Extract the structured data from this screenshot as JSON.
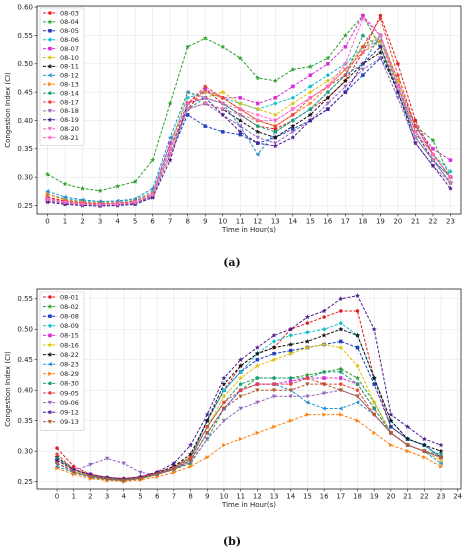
{
  "chart_data": [
    {
      "type": "line",
      "caption": "(a)",
      "xlabel": "Time in Hour(s)",
      "ylabel": "Congestion Index (CI)",
      "xlim": [
        -0.6,
        23.6
      ],
      "ylim": [
        0.235,
        0.602
      ],
      "xticks": [
        0,
        1,
        2,
        3,
        4,
        5,
        6,
        7,
        8,
        9,
        10,
        11,
        12,
        13,
        14,
        15,
        16,
        17,
        18,
        19,
        20,
        21,
        22,
        23
      ],
      "yticks": [
        0.25,
        0.3,
        0.35,
        0.4,
        0.45,
        0.5,
        0.55,
        0.6
      ],
      "legend": "upper-left",
      "grid": true,
      "x": [
        0,
        1,
        2,
        3,
        4,
        5,
        6,
        7,
        8,
        9,
        10,
        11,
        12,
        13,
        14,
        15,
        16,
        17,
        18,
        19,
        20,
        21,
        22,
        23
      ],
      "series": [
        {
          "name": "08-03",
          "color": "#e41a1c",
          "marker": "circle",
          "values": [
            0.265,
            0.258,
            0.255,
            0.253,
            0.254,
            0.256,
            0.268,
            0.35,
            0.42,
            0.455,
            0.43,
            0.41,
            0.39,
            0.385,
            0.4,
            0.42,
            0.44,
            0.47,
            0.52,
            0.585,
            0.5,
            0.4,
            0.34,
            0.3
          ]
        },
        {
          "name": "08-04",
          "color": "#2ca02c",
          "marker": "star",
          "values": [
            0.305,
            0.288,
            0.28,
            0.276,
            0.284,
            0.292,
            0.33,
            0.43,
            0.53,
            0.545,
            0.53,
            0.51,
            0.475,
            0.47,
            0.49,
            0.495,
            0.51,
            0.55,
            0.585,
            0.53,
            0.46,
            0.39,
            0.365,
            0.3
          ]
        },
        {
          "name": "08-05",
          "color": "#1f3fbf",
          "marker": "square",
          "values": [
            0.26,
            0.256,
            0.254,
            0.252,
            0.253,
            0.255,
            0.265,
            0.34,
            0.41,
            0.39,
            0.38,
            0.375,
            0.36,
            0.37,
            0.385,
            0.4,
            0.42,
            0.45,
            0.48,
            0.51,
            0.46,
            0.38,
            0.33,
            0.3
          ]
        },
        {
          "name": "08-06",
          "color": "#17becf",
          "marker": "diamond",
          "values": [
            0.27,
            0.262,
            0.258,
            0.256,
            0.257,
            0.26,
            0.275,
            0.36,
            0.44,
            0.45,
            0.44,
            0.43,
            0.42,
            0.43,
            0.44,
            0.46,
            0.48,
            0.5,
            0.53,
            0.54,
            0.47,
            0.39,
            0.34,
            0.31
          ]
        },
        {
          "name": "08-07",
          "color": "#d62dd6",
          "marker": "square",
          "values": [
            0.262,
            0.256,
            0.253,
            0.251,
            0.252,
            0.255,
            0.27,
            0.36,
            0.43,
            0.455,
            0.44,
            0.44,
            0.43,
            0.44,
            0.46,
            0.48,
            0.5,
            0.53,
            0.585,
            0.55,
            0.47,
            0.39,
            0.35,
            0.33
          ]
        },
        {
          "name": "08-10",
          "color": "#e0c000",
          "marker": "star",
          "values": [
            0.258,
            0.254,
            0.252,
            0.251,
            0.252,
            0.254,
            0.268,
            0.35,
            0.45,
            0.44,
            0.45,
            0.43,
            0.42,
            0.41,
            0.43,
            0.45,
            0.47,
            0.49,
            0.53,
            0.55,
            0.47,
            0.38,
            0.34,
            0.3
          ]
        },
        {
          "name": "08-11",
          "color": "#111111",
          "marker": "star",
          "values": [
            0.26,
            0.255,
            0.252,
            0.25,
            0.251,
            0.254,
            0.268,
            0.34,
            0.42,
            0.43,
            0.42,
            0.4,
            0.38,
            0.37,
            0.39,
            0.41,
            0.44,
            0.47,
            0.5,
            0.52,
            0.45,
            0.37,
            0.33,
            0.29
          ]
        },
        {
          "name": "08-12",
          "color": "#2a8fd0",
          "marker": "triangle-left",
          "values": [
            0.275,
            0.265,
            0.26,
            0.257,
            0.258,
            0.262,
            0.28,
            0.37,
            0.45,
            0.44,
            0.43,
            0.39,
            0.34,
            0.38,
            0.4,
            0.42,
            0.45,
            0.48,
            0.5,
            0.55,
            0.46,
            0.37,
            0.33,
            0.3
          ]
        },
        {
          "name": "08-13",
          "color": "#ff7f0e",
          "marker": "triangle-right",
          "values": [
            0.27,
            0.26,
            0.256,
            0.254,
            0.255,
            0.258,
            0.272,
            0.35,
            0.43,
            0.45,
            0.44,
            0.42,
            0.4,
            0.39,
            0.41,
            0.43,
            0.46,
            0.49,
            0.52,
            0.54,
            0.46,
            0.38,
            0.34,
            0.3
          ]
        },
        {
          "name": "08-14",
          "color": "#1a9e77",
          "marker": "circle",
          "values": [
            0.262,
            0.256,
            0.253,
            0.252,
            0.253,
            0.256,
            0.27,
            0.35,
            0.42,
            0.44,
            0.43,
            0.41,
            0.39,
            0.38,
            0.4,
            0.42,
            0.45,
            0.48,
            0.55,
            0.53,
            0.45,
            0.37,
            0.33,
            0.29
          ]
        },
        {
          "name": "08-17",
          "color": "#e8423a",
          "marker": "circle",
          "values": [
            0.264,
            0.257,
            0.254,
            0.253,
            0.254,
            0.257,
            0.27,
            0.35,
            0.43,
            0.46,
            0.44,
            0.42,
            0.4,
            0.39,
            0.41,
            0.44,
            0.46,
            0.48,
            0.53,
            0.58,
            0.48,
            0.39,
            0.34,
            0.3
          ]
        },
        {
          "name": "08-18",
          "color": "#9467bd",
          "marker": "triangle-down",
          "values": [
            0.258,
            0.253,
            0.251,
            0.25,
            0.251,
            0.253,
            0.266,
            0.34,
            0.42,
            0.43,
            0.41,
            0.39,
            0.37,
            0.36,
            0.38,
            0.4,
            0.43,
            0.46,
            0.49,
            0.51,
            0.44,
            0.36,
            0.32,
            0.29
          ]
        },
        {
          "name": "08-19",
          "color": "#4b1c8c",
          "marker": "star",
          "values": [
            0.256,
            0.252,
            0.25,
            0.249,
            0.25,
            0.252,
            0.264,
            0.33,
            0.43,
            0.44,
            0.41,
            0.38,
            0.36,
            0.355,
            0.37,
            0.4,
            0.42,
            0.45,
            0.5,
            0.53,
            0.45,
            0.36,
            0.32,
            0.28
          ]
        },
        {
          "name": "08-20",
          "color": "#e377c2",
          "marker": "triangle-down",
          "values": [
            0.26,
            0.255,
            0.252,
            0.251,
            0.252,
            0.255,
            0.268,
            0.34,
            0.42,
            0.43,
            0.42,
            0.41,
            0.4,
            0.4,
            0.42,
            0.44,
            0.46,
            0.49,
            0.52,
            0.55,
            0.46,
            0.37,
            0.33,
            0.29
          ]
        },
        {
          "name": "08-21",
          "color": "#ff66cc",
          "marker": "star",
          "values": [
            0.262,
            0.256,
            0.253,
            0.252,
            0.253,
            0.256,
            0.27,
            0.35,
            0.43,
            0.44,
            0.43,
            0.42,
            0.41,
            0.4,
            0.42,
            0.44,
            0.46,
            0.5,
            0.58,
            0.55,
            0.46,
            0.38,
            0.34,
            0.3
          ]
        }
      ]
    },
    {
      "type": "line",
      "caption": "(b)",
      "xlabel": "Time in Hour(s)",
      "ylabel": "Congestion Index (CI)",
      "xlim": [
        -1.2,
        24.2
      ],
      "ylim": [
        0.238,
        0.566
      ],
      "xticks": [
        0,
        1,
        2,
        3,
        4,
        5,
        6,
        7,
        8,
        9,
        10,
        11,
        12,
        13,
        14,
        15,
        16,
        17,
        18,
        19,
        20,
        21,
        22,
        23,
        24
      ],
      "yticks": [
        0.25,
        0.3,
        0.35,
        0.4,
        0.45,
        0.5,
        0.55
      ],
      "legend": "upper-left",
      "grid": true,
      "x": [
        0,
        1,
        2,
        3,
        4,
        5,
        6,
        7,
        8,
        9,
        10,
        11,
        12,
        13,
        14,
        15,
        16,
        17,
        18,
        19,
        20,
        21,
        22,
        23
      ],
      "series": [
        {
          "name": "08-01",
          "color": "#e41a1c",
          "marker": "circle",
          "values": [
            0.305,
            0.275,
            0.262,
            0.257,
            0.255,
            0.258,
            0.265,
            0.275,
            0.29,
            0.35,
            0.4,
            0.44,
            0.46,
            0.47,
            0.5,
            0.51,
            0.52,
            0.53,
            0.53,
            0.42,
            0.34,
            0.32,
            0.31,
            0.29
          ]
        },
        {
          "name": "08-02",
          "color": "#2ca02c",
          "marker": "star",
          "values": [
            0.29,
            0.27,
            0.26,
            0.255,
            0.253,
            0.256,
            0.262,
            0.27,
            0.28,
            0.32,
            0.37,
            0.4,
            0.42,
            0.42,
            0.42,
            0.425,
            0.43,
            0.435,
            0.42,
            0.38,
            0.33,
            0.31,
            0.3,
            0.29
          ]
        },
        {
          "name": "08-08",
          "color": "#1f3fbf",
          "marker": "square",
          "values": [
            0.285,
            0.268,
            0.258,
            0.254,
            0.252,
            0.255,
            0.262,
            0.272,
            0.29,
            0.35,
            0.4,
            0.43,
            0.45,
            0.46,
            0.465,
            0.47,
            0.475,
            0.48,
            0.47,
            0.41,
            0.34,
            0.32,
            0.31,
            0.29
          ]
        },
        {
          "name": "08-09",
          "color": "#17becf",
          "marker": "diamond",
          "values": [
            0.28,
            0.266,
            0.258,
            0.254,
            0.252,
            0.255,
            0.262,
            0.272,
            0.29,
            0.35,
            0.4,
            0.43,
            0.46,
            0.48,
            0.49,
            0.495,
            0.5,
            0.51,
            0.49,
            0.42,
            0.35,
            0.32,
            0.31,
            0.29
          ]
        },
        {
          "name": "08-15",
          "color": "#d62dd6",
          "marker": "square",
          "values": [
            0.285,
            0.27,
            0.262,
            0.256,
            0.254,
            0.256,
            0.264,
            0.272,
            0.285,
            0.33,
            0.37,
            0.4,
            0.41,
            0.41,
            0.415,
            0.42,
            0.42,
            0.42,
            0.41,
            0.37,
            0.33,
            0.31,
            0.3,
            0.29
          ]
        },
        {
          "name": "08-16",
          "color": "#e0c000",
          "marker": "star",
          "values": [
            0.285,
            0.268,
            0.258,
            0.254,
            0.252,
            0.255,
            0.262,
            0.272,
            0.29,
            0.34,
            0.39,
            0.42,
            0.44,
            0.45,
            0.46,
            0.47,
            0.475,
            0.47,
            0.44,
            0.38,
            0.33,
            0.31,
            0.3,
            0.285
          ]
        },
        {
          "name": "08-22",
          "color": "#111111",
          "marker": "star",
          "values": [
            0.29,
            0.27,
            0.26,
            0.255,
            0.253,
            0.256,
            0.264,
            0.275,
            0.295,
            0.35,
            0.41,
            0.44,
            0.46,
            0.47,
            0.475,
            0.48,
            0.49,
            0.5,
            0.49,
            0.42,
            0.35,
            0.32,
            0.31,
            0.3
          ]
        },
        {
          "name": "08-23",
          "color": "#2a8fd0",
          "marker": "triangle-left",
          "values": [
            0.275,
            0.265,
            0.257,
            0.253,
            0.252,
            0.255,
            0.262,
            0.27,
            0.285,
            0.33,
            0.37,
            0.4,
            0.41,
            0.41,
            0.4,
            0.38,
            0.37,
            0.37,
            0.38,
            0.36,
            0.33,
            0.31,
            0.3,
            0.28
          ]
        },
        {
          "name": "08-29",
          "color": "#ff7f0e",
          "marker": "triangle-right",
          "values": [
            0.272,
            0.262,
            0.255,
            0.252,
            0.25,
            0.253,
            0.258,
            0.265,
            0.275,
            0.29,
            0.31,
            0.32,
            0.33,
            0.34,
            0.35,
            0.36,
            0.36,
            0.36,
            0.35,
            0.33,
            0.31,
            0.3,
            0.29,
            0.275
          ]
        },
        {
          "name": "08-30",
          "color": "#1a9e77",
          "marker": "circle",
          "values": [
            0.288,
            0.27,
            0.26,
            0.255,
            0.253,
            0.256,
            0.263,
            0.272,
            0.288,
            0.34,
            0.38,
            0.41,
            0.42,
            0.42,
            0.42,
            0.42,
            0.43,
            0.43,
            0.41,
            0.37,
            0.33,
            0.31,
            0.3,
            0.295
          ]
        },
        {
          "name": "09-05",
          "color": "#e8423a",
          "marker": "circle",
          "values": [
            0.295,
            0.27,
            0.26,
            0.256,
            0.254,
            0.257,
            0.264,
            0.273,
            0.29,
            0.34,
            0.38,
            0.4,
            0.41,
            0.41,
            0.41,
            0.42,
            0.41,
            0.41,
            0.4,
            0.36,
            0.33,
            0.31,
            0.3,
            0.29
          ]
        },
        {
          "name": "09-06",
          "color": "#9467bd",
          "marker": "triangle-down",
          "values": [
            0.28,
            0.268,
            0.278,
            0.288,
            0.28,
            0.265,
            0.262,
            0.27,
            0.282,
            0.32,
            0.35,
            0.37,
            0.38,
            0.39,
            0.39,
            0.39,
            0.395,
            0.4,
            0.39,
            0.36,
            0.33,
            0.31,
            0.3,
            0.29
          ]
        },
        {
          "name": "09-12",
          "color": "#4b1c8c",
          "marker": "star",
          "values": [
            0.285,
            0.27,
            0.262,
            0.257,
            0.255,
            0.258,
            0.266,
            0.28,
            0.31,
            0.36,
            0.42,
            0.45,
            0.47,
            0.49,
            0.5,
            0.52,
            0.53,
            0.55,
            0.555,
            0.5,
            0.36,
            0.34,
            0.32,
            0.31
          ]
        },
        {
          "name": "09-13",
          "color": "#b05a30",
          "marker": "triangle-down",
          "values": [
            0.28,
            0.266,
            0.258,
            0.254,
            0.252,
            0.255,
            0.262,
            0.27,
            0.285,
            0.33,
            0.37,
            0.39,
            0.4,
            0.4,
            0.4,
            0.41,
            0.41,
            0.4,
            0.39,
            0.36,
            0.33,
            0.31,
            0.3,
            0.29
          ]
        }
      ]
    }
  ]
}
